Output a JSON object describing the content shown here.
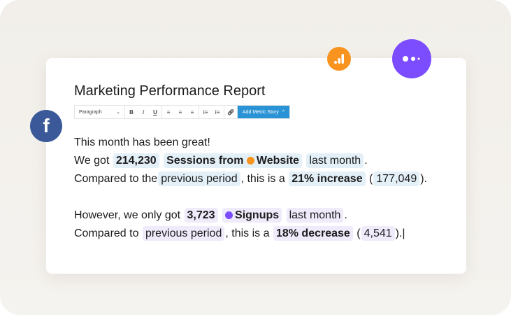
{
  "title": "Marketing Performance Report",
  "toolbar": {
    "format_select": "Paragraph",
    "bold": "B",
    "italic": "I",
    "underline": "U",
    "add_metric_story": "Add Metric Story"
  },
  "content": {
    "line1": "This month has been great!",
    "line2": {
      "prefix": "We got",
      "value": "214,230",
      "metric": "Sessions from",
      "source": "Website",
      "period": "last month",
      "suffix": "."
    },
    "line3": {
      "prefix": "Compared to the",
      "comparison": "previous period",
      "mid": ", this is a",
      "change": "21% increase",
      "open": "(",
      "previous_value": "177,049",
      "close": ")."
    },
    "line4": {
      "prefix": "However, we only got",
      "value": "3,723",
      "metric": "Signups",
      "period": "last month",
      "suffix": "."
    },
    "line5": {
      "prefix": "Compared to",
      "comparison": "previous period",
      "mid": ", this is a",
      "change": "18% decrease",
      "open": "(",
      "previous_value": "4,541",
      "close": ").|"
    }
  },
  "colors": {
    "facebook": "#3b5998",
    "analytics": "#f7931e",
    "segment": "#7c4dff",
    "chip_blue": "#e4f0f8",
    "chip_purple": "#efebfb",
    "button": "#2a93d5"
  },
  "icons": [
    "facebook-icon",
    "google-analytics-icon",
    "more-dots-icon"
  ]
}
